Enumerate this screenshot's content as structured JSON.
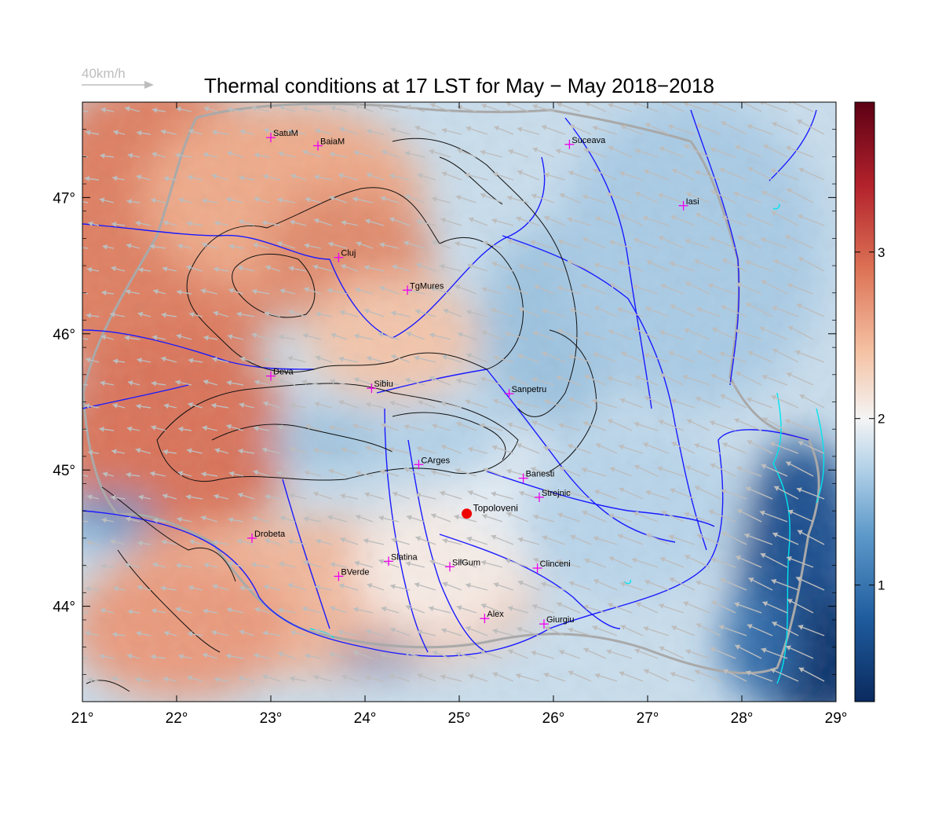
{
  "title": "Thermal conditions at 17 LST for May − May  2018−2018",
  "wind_legend": {
    "label": "40km/h",
    "color": "#bdbdbd"
  },
  "map": {
    "lon_range": [
      21,
      29
    ],
    "lat_range": [
      43.3,
      47.7
    ],
    "x_ticks": [
      {
        "value": 21,
        "label": "21°"
      },
      {
        "value": 22,
        "label": "22°"
      },
      {
        "value": 23,
        "label": "23°"
      },
      {
        "value": 24,
        "label": "24°"
      },
      {
        "value": 25,
        "label": "25°"
      },
      {
        "value": 26,
        "label": "26°"
      },
      {
        "value": 27,
        "label": "27°"
      },
      {
        "value": 28,
        "label": "28°"
      },
      {
        "value": 29,
        "label": "29°"
      }
    ],
    "y_ticks": [
      {
        "value": 44,
        "label": "44°"
      },
      {
        "value": 45,
        "label": "45°"
      },
      {
        "value": 46,
        "label": "46°"
      },
      {
        "value": 47,
        "label": "47°"
      }
    ],
    "colors": {
      "river": "#1a1aff",
      "contour": "#111111",
      "lake": "#00e5ee",
      "border": "#a9a9a9",
      "city_marker": "#ee00ee",
      "highlight": "#ee0000",
      "arrow": "#bdbdbd"
    },
    "cities": [
      {
        "name": "SatuM",
        "lon": 23.0,
        "lat": 47.44
      },
      {
        "name": "BaiaM",
        "lon": 23.5,
        "lat": 47.38
      },
      {
        "name": "Suceava",
        "lon": 26.17,
        "lat": 47.39
      },
      {
        "name": "Iasi",
        "lon": 27.38,
        "lat": 46.94
      },
      {
        "name": "Cluj",
        "lon": 23.72,
        "lat": 46.56
      },
      {
        "name": "TgMures",
        "lon": 24.45,
        "lat": 46.32
      },
      {
        "name": "Deva",
        "lon": 23.0,
        "lat": 45.69
      },
      {
        "name": "Sibiu",
        "lon": 24.07,
        "lat": 45.6
      },
      {
        "name": "Sanpetru",
        "lon": 25.53,
        "lat": 45.56
      },
      {
        "name": "CArges",
        "lon": 24.57,
        "lat": 45.04
      },
      {
        "name": "Banesti",
        "lon": 25.68,
        "lat": 44.94
      },
      {
        "name": "Strejnic",
        "lon": 25.85,
        "lat": 44.8
      },
      {
        "name": "Drobeta",
        "lon": 22.8,
        "lat": 44.5
      },
      {
        "name": "Slatina",
        "lon": 24.25,
        "lat": 44.33
      },
      {
        "name": "SilGum",
        "lon": 24.9,
        "lat": 44.29
      },
      {
        "name": "Clinceni",
        "lon": 25.83,
        "lat": 44.28
      },
      {
        "name": "BVerde",
        "lon": 23.72,
        "lat": 44.22
      },
      {
        "name": "Alex",
        "lon": 25.27,
        "lat": 43.91
      },
      {
        "name": "Giurgiu",
        "lon": 25.9,
        "lat": 43.87
      }
    ],
    "highlight_site": {
      "name": "Topoloveni",
      "lon": 25.08,
      "lat": 44.68
    }
  },
  "colorbar": {
    "range": [
      0.3,
      3.9
    ],
    "ticks": [
      {
        "value": 1,
        "label": "1"
      },
      {
        "value": 2,
        "label": "2"
      },
      {
        "value": 3,
        "label": "3"
      }
    ],
    "stops": [
      {
        "value": 0.3,
        "color": "#0a2a5e"
      },
      {
        "value": 0.8,
        "color": "#1f5c9e"
      },
      {
        "value": 1.3,
        "color": "#5d99c9"
      },
      {
        "value": 1.7,
        "color": "#b2d1e8"
      },
      {
        "value": 2.0,
        "color": "#f4f4f4"
      },
      {
        "value": 2.4,
        "color": "#f5c2a4"
      },
      {
        "value": 2.9,
        "color": "#dc7255"
      },
      {
        "value": 3.4,
        "color": "#b3222c"
      },
      {
        "value": 3.9,
        "color": "#5c0014"
      }
    ]
  }
}
